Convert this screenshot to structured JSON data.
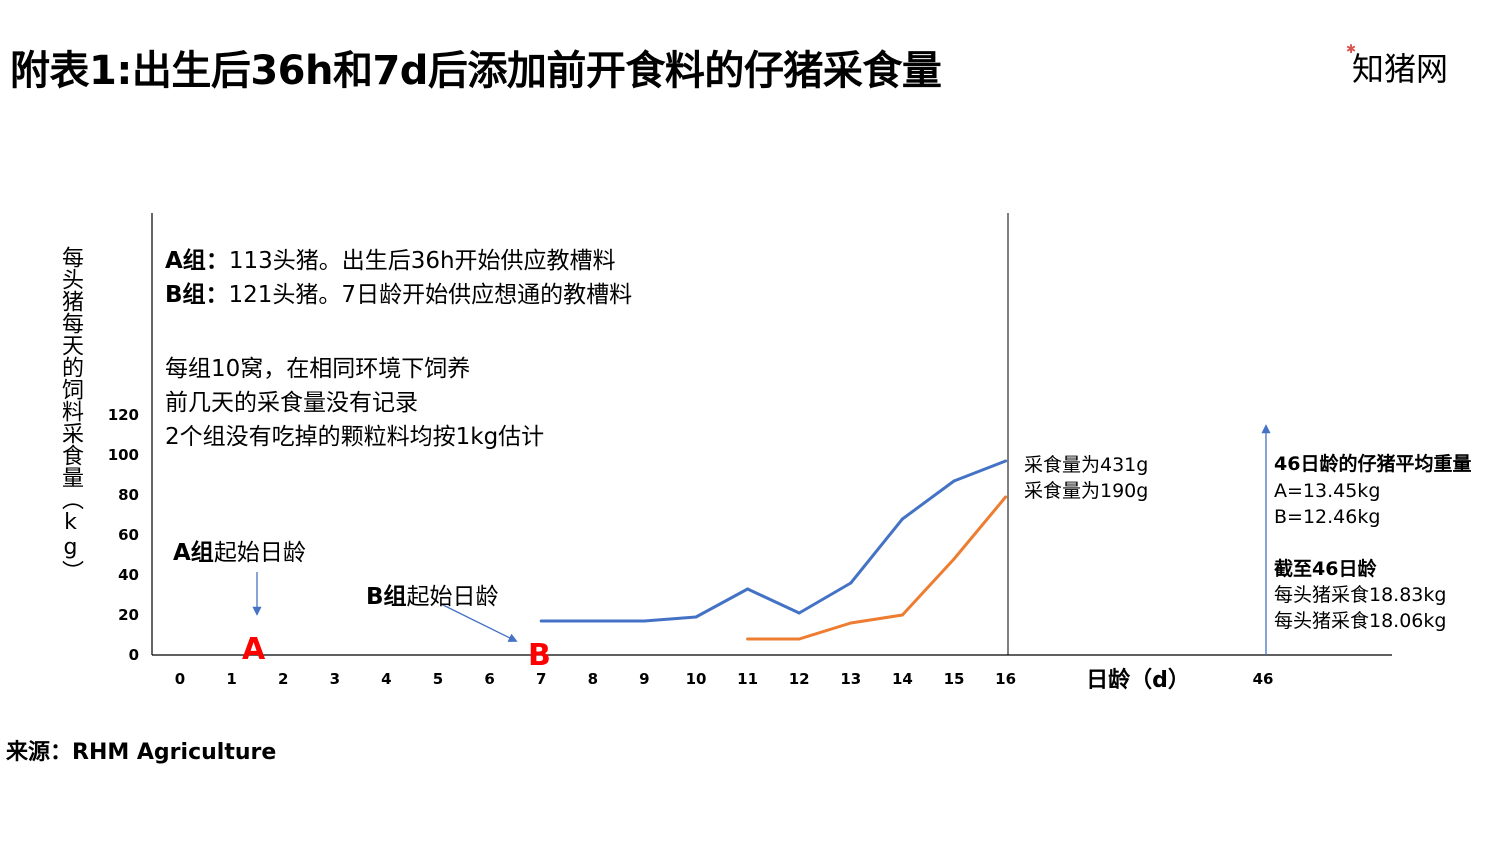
{
  "title": "附表1:出生后36h和7d后添加前开食料的仔猪采食量",
  "logo_text": "知猪网",
  "source": "来源：RHM Agriculture",
  "notes": {
    "a_prefix": "A组",
    "a_sep": "：",
    "a_text": "113头猪。出生后36h开始供应教槽料",
    "b_prefix": "B组",
    "b_sep": "：",
    "b_text": "121头猪。7日龄开始供应想通的教槽料",
    "line3": "每组10窝，在相同环境下饲养",
    "line4": "前几天的采食量没有记录",
    "line5": "2个组没有吃掉的颗粒料均按1kg估计"
  },
  "start_labels": {
    "a_group": "A组",
    "a_suffix": "起始日龄",
    "b_group": "B组",
    "b_suffix": "起始日龄",
    "a_marker": "A",
    "b_marker": "B"
  },
  "end_labels": {
    "a": "采食量为431g",
    "b": "采食量为190g"
  },
  "day46": {
    "heading": "46日龄的仔猪平均重量",
    "a_weight": "A=13.45kg",
    "b_weight": "B=12.46kg",
    "heading2": "截至46日龄",
    "a_intake": "每头猪采食18.83kg",
    "b_intake": "每头猪采食18.06kg"
  },
  "colors": {
    "series_a": "#4472c4",
    "series_b": "#ed7d31",
    "arrow": "#4472c4",
    "marker": "#ff0000"
  },
  "chart_data": {
    "type": "line",
    "ylabel": "每头猪每天的饲料采食量（kg）",
    "xlabel": "日龄（d）",
    "x_ticks": [
      "0",
      "1",
      "2",
      "3",
      "4",
      "5",
      "6",
      "7",
      "8",
      "9",
      "10",
      "11",
      "12",
      "13",
      "14",
      "15",
      "16",
      "46"
    ],
    "y_ticks": [
      0,
      20,
      40,
      60,
      80,
      100,
      120
    ],
    "ylim": [
      0,
      120
    ],
    "grid": false,
    "series": [
      {
        "name": "A",
        "x": [
          7,
          8,
          9,
          10,
          11,
          12,
          13,
          14,
          15,
          16
        ],
        "values": [
          17,
          17,
          17,
          19,
          33,
          21,
          36,
          68,
          87,
          97
        ]
      },
      {
        "name": "B",
        "x": [
          11,
          12,
          13,
          14,
          15,
          16
        ],
        "values": [
          8,
          8,
          16,
          20,
          48,
          79
        ]
      }
    ]
  }
}
